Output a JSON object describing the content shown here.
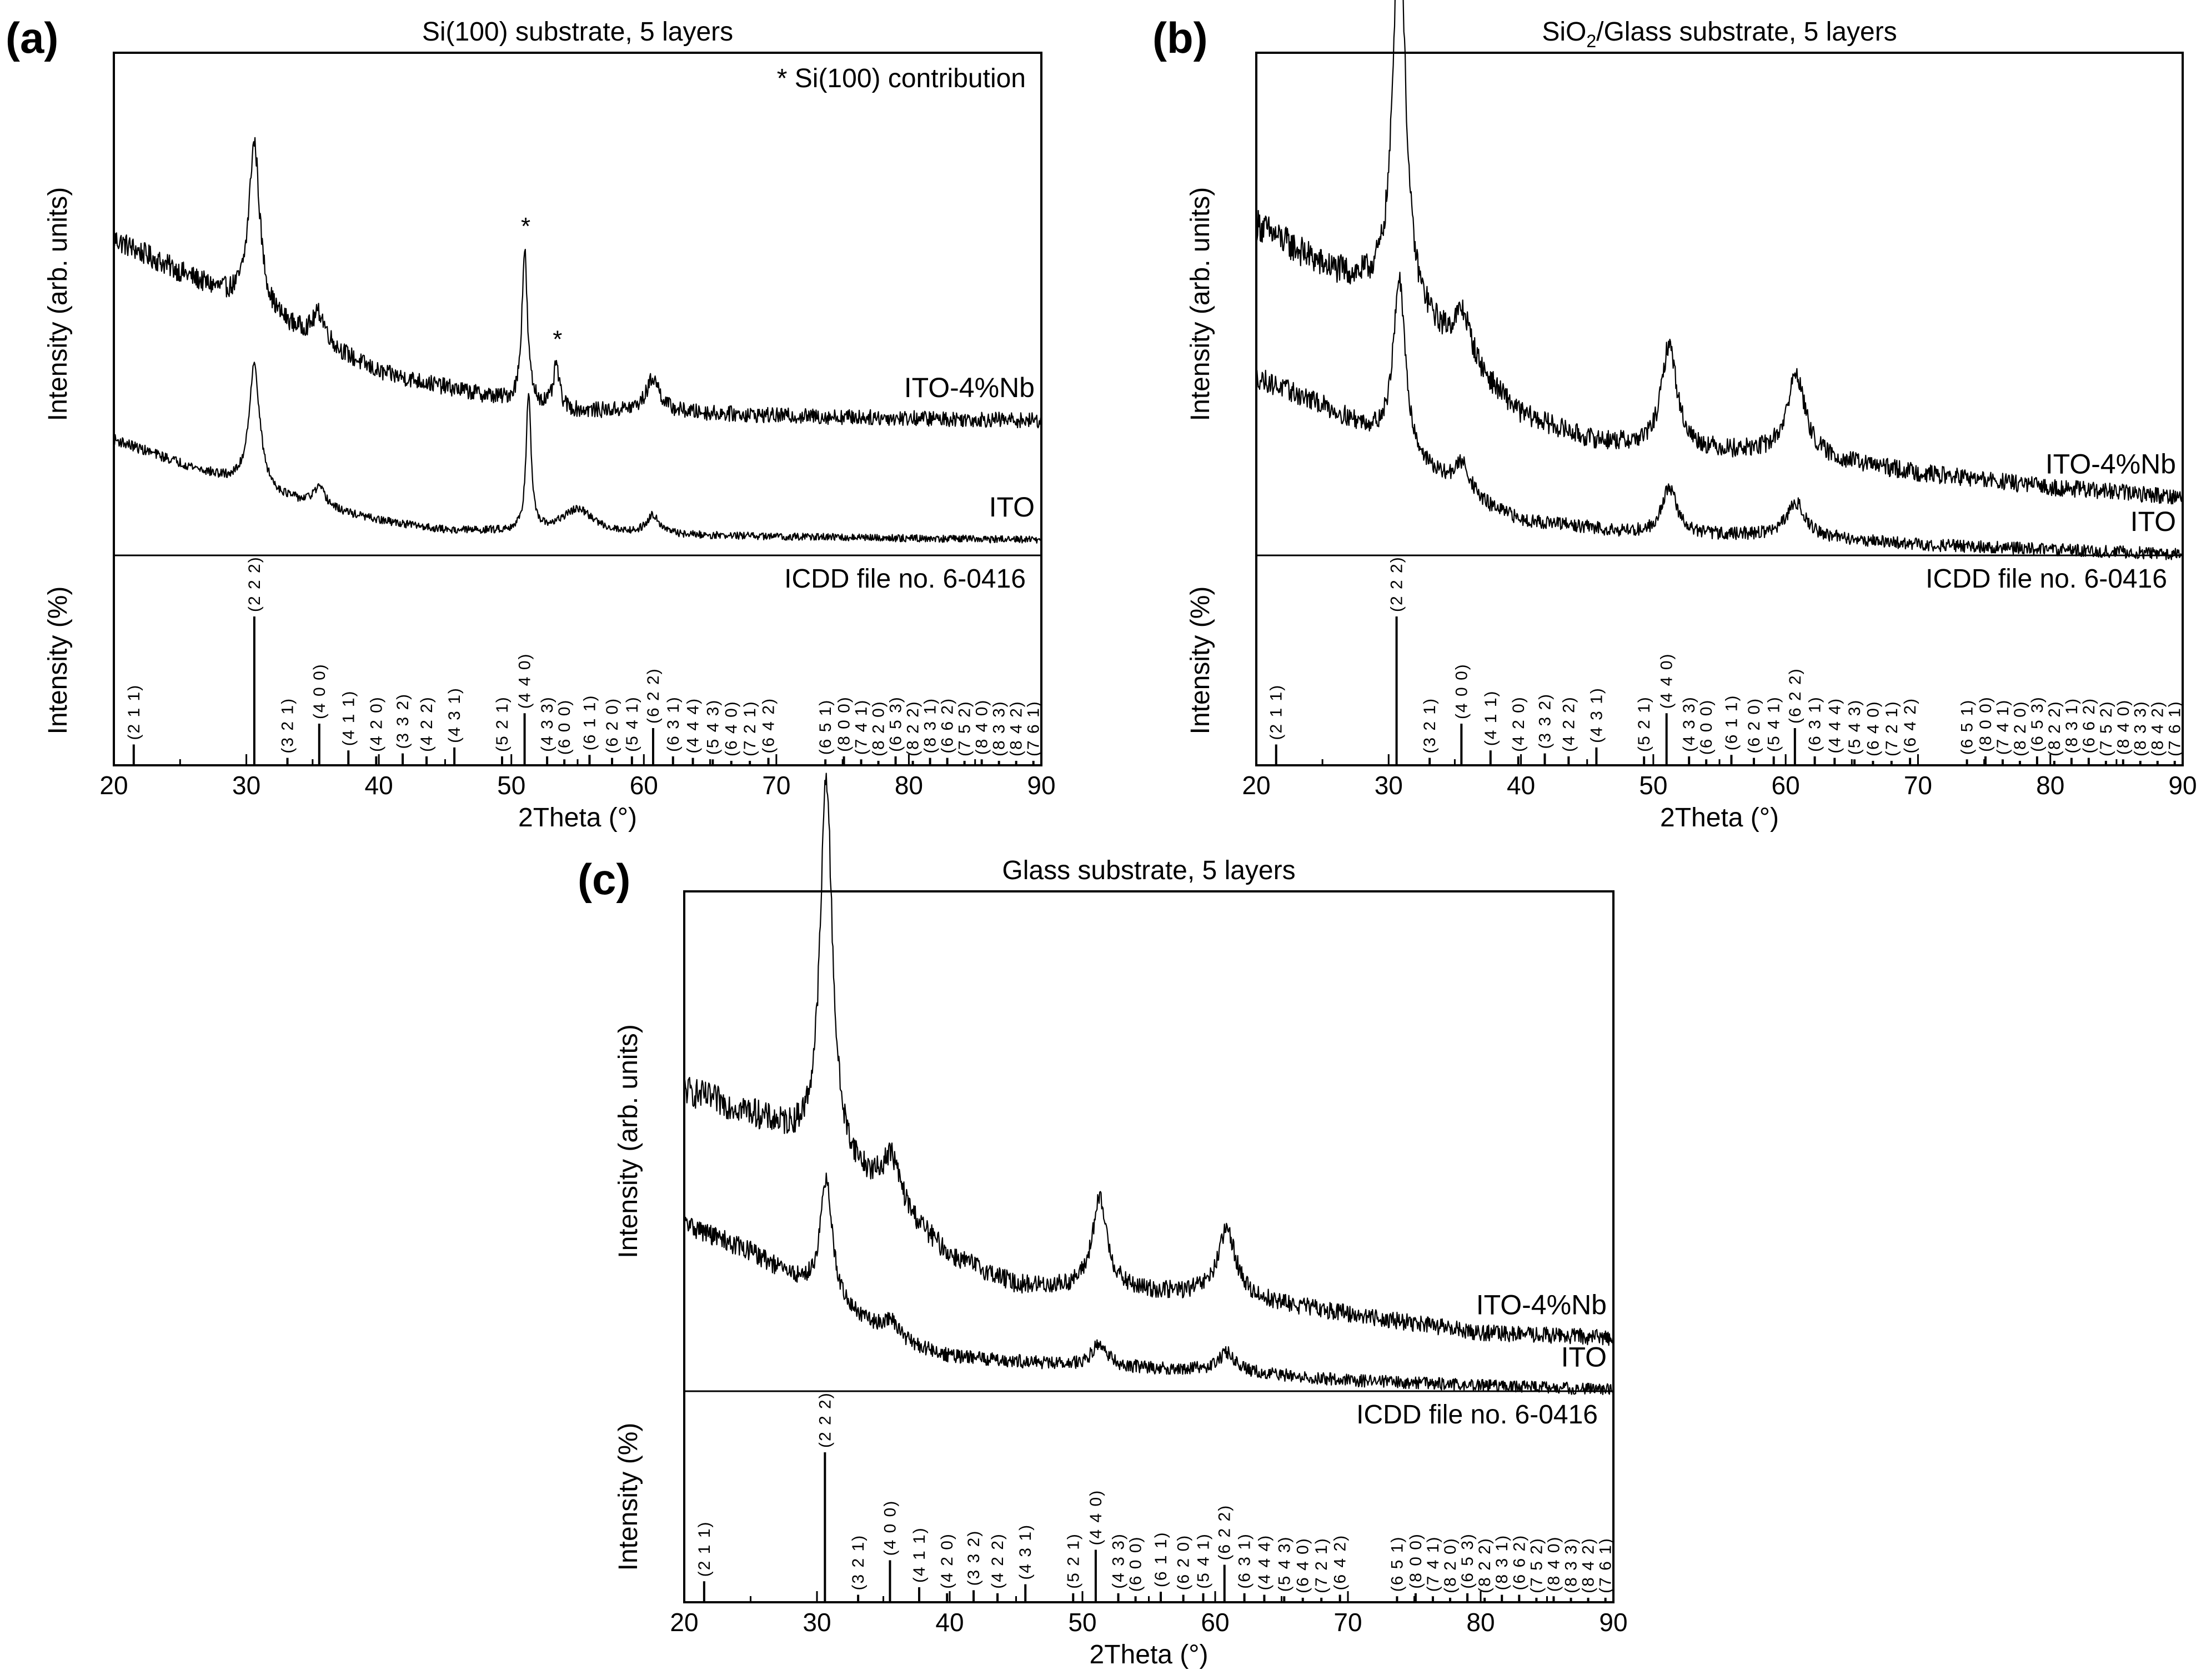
{
  "chart_data": [
    {
      "panel": "(a)",
      "type": "line",
      "title": "Si(100) substrate, 5 layers",
      "note": "* Si(100) contribution",
      "xlabel": "2Theta (°)",
      "ylabel": "Intensity (arb. units)",
      "xlim": [
        20,
        90
      ],
      "xticks": [
        20,
        30,
        40,
        50,
        60,
        70,
        80,
        90
      ],
      "grid": false,
      "series": [
        {
          "name": "ITO-4%Nb",
          "baseline": [
            [
              20,
              0.61
            ],
            [
              25,
              0.54
            ],
            [
              30,
              0.47
            ],
            [
              35,
              0.4
            ],
            [
              40,
              0.33
            ],
            [
              45,
              0.3
            ],
            [
              50,
              0.27
            ],
            [
              55,
              0.25
            ],
            [
              60,
              0.25
            ],
            [
              70,
              0.24
            ],
            [
              90,
              0.23
            ]
          ],
          "peaks": [
            {
              "x": 30.6,
              "h": 0.35,
              "w": 0.5
            },
            {
              "x": 35.5,
              "h": 0.06,
              "w": 0.6
            },
            {
              "x": 51.0,
              "h": 0.32,
              "w": 0.25
            },
            {
              "x": 53.4,
              "h": 0.09,
              "w": 0.25
            },
            {
              "x": 60.7,
              "h": 0.07,
              "w": 0.6
            }
          ],
          "noise": 0.022
        },
        {
          "name": "ITO",
          "baseline": [
            [
              20,
              0.19
            ],
            [
              25,
              0.14
            ],
            [
              30,
              0.09
            ],
            [
              35,
              0.05
            ],
            [
              40,
              0.02
            ],
            [
              45,
              0.0
            ],
            [
              60,
              -0.01
            ],
            [
              90,
              -0.02
            ]
          ],
          "peaks": [
            {
              "x": 30.6,
              "h": 0.26,
              "w": 0.5
            },
            {
              "x": 35.5,
              "h": 0.04,
              "w": 0.6
            },
            {
              "x": 51.3,
              "h": 0.29,
              "w": 0.22
            },
            {
              "x": 55.0,
              "h": 0.05,
              "w": 1.5
            },
            {
              "x": 60.7,
              "h": 0.04,
              "w": 0.6
            }
          ],
          "noise": 0.016
        }
      ],
      "reference": {
        "label": "ICDD file no. 6-0416",
        "ylabel": "Intensity (%)",
        "lines": [
          {
            "hkl": "(2 1 1)",
            "x": 21.5,
            "i": 14
          },
          {
            "hkl": "(2 2 2)",
            "x": 30.6,
            "i": 100
          },
          {
            "hkl": "(3 2 1)",
            "x": 33.1,
            "i": 5
          },
          {
            "hkl": "(4 0 0)",
            "x": 35.5,
            "i": 28
          },
          {
            "hkl": "(4 1 1)",
            "x": 37.7,
            "i": 10
          },
          {
            "hkl": "(4 2 0)",
            "x": 39.8,
            "i": 6
          },
          {
            "hkl": "(3 3 2)",
            "x": 41.8,
            "i": 8
          },
          {
            "hkl": "(4 2 2)",
            "x": 43.6,
            "i": 6
          },
          {
            "hkl": "(4 3 1)",
            "x": 45.7,
            "i": 12
          },
          {
            "hkl": "(5 2 1)",
            "x": 49.3,
            "i": 6
          },
          {
            "hkl": "(4 4 0)",
            "x": 51.0,
            "i": 35
          },
          {
            "hkl": "(4 3 3)",
            "x": 52.7,
            "i": 6
          },
          {
            "hkl": "(6 0 0)",
            "x": 54.0,
            "i": 4
          },
          {
            "hkl": "(6 1 1)",
            "x": 55.9,
            "i": 7
          },
          {
            "hkl": "(6 2 0)",
            "x": 57.6,
            "i": 5
          },
          {
            "hkl": "(5 4 1)",
            "x": 59.1,
            "i": 6
          },
          {
            "hkl": "(6 2 2)",
            "x": 60.7,
            "i": 25
          },
          {
            "hkl": "(6 3 1)",
            "x": 62.2,
            "i": 6
          },
          {
            "hkl": "(4 4 4)",
            "x": 63.7,
            "i": 5
          },
          {
            "hkl": "(5 4 3)",
            "x": 65.2,
            "i": 4
          },
          {
            "hkl": "(6 4 0)",
            "x": 66.6,
            "i": 3
          },
          {
            "hkl": "(7 2 1)",
            "x": 68.0,
            "i": 3
          },
          {
            "hkl": "(6 4 2)",
            "x": 69.4,
            "i": 5
          },
          {
            "hkl": "(6 5 1)",
            "x": 73.7,
            "i": 4
          },
          {
            "hkl": "(8 0 0)",
            "x": 75.1,
            "i": 6
          },
          {
            "hkl": "(7 4 1)",
            "x": 76.4,
            "i": 4
          },
          {
            "hkl": "(8 2 0)",
            "x": 77.7,
            "i": 3
          },
          {
            "hkl": "(6 5 3)",
            "x": 79.0,
            "i": 6
          },
          {
            "hkl": "(8 2 2)",
            "x": 80.3,
            "i": 3
          },
          {
            "hkl": "(8 3 1)",
            "x": 81.6,
            "i": 5
          },
          {
            "hkl": "(6 6 2)",
            "x": 82.9,
            "i": 5
          },
          {
            "hkl": "(7 5 2)",
            "x": 84.2,
            "i": 3
          },
          {
            "hkl": "(8 4 0)",
            "x": 85.5,
            "i": 4
          },
          {
            "hkl": "(8 3 3)",
            "x": 86.8,
            "i": 3
          },
          {
            "hkl": "(8 4 2)",
            "x": 88.1,
            "i": 3
          },
          {
            "hkl": "(7 6 1)",
            "x": 89.4,
            "i": 3
          }
        ]
      }
    },
    {
      "panel": "(b)",
      "type": "line",
      "title_parts": [
        "SiO",
        "2",
        "/Glass substrate, 5 layers"
      ],
      "xlabel": "2Theta (°)",
      "ylabel": "Intensity (arb. units)",
      "xlim": [
        20,
        90
      ],
      "xticks": [
        20,
        30,
        40,
        50,
        60,
        70,
        80,
        90
      ],
      "grid": false,
      "series": [
        {
          "name": "ITO-4%Nb",
          "baseline": [
            [
              20,
              0.64
            ],
            [
              25,
              0.55
            ],
            [
              29,
              0.5
            ],
            [
              33,
              0.42
            ],
            [
              36,
              0.34
            ],
            [
              40,
              0.24
            ],
            [
              45,
              0.19
            ],
            [
              50,
              0.17
            ],
            [
              60,
              0.16
            ],
            [
              70,
              0.12
            ],
            [
              80,
              0.09
            ],
            [
              90,
              0.07
            ]
          ],
          "peaks": [
            {
              "x": 30.8,
              "h": 0.85,
              "w": 0.55
            },
            {
              "x": 35.6,
              "h": 0.1,
              "w": 0.8
            },
            {
              "x": 51.2,
              "h": 0.22,
              "w": 0.7
            },
            {
              "x": 60.8,
              "h": 0.17,
              "w": 0.8
            }
          ],
          "noise": 0.03
        },
        {
          "name": "ITO",
          "baseline": [
            [
              20,
              0.32
            ],
            [
              25,
              0.26
            ],
            [
              29,
              0.2
            ],
            [
              33,
              0.12
            ],
            [
              36,
              0.06
            ],
            [
              40,
              0.02
            ],
            [
              50,
              -0.01
            ],
            [
              60,
              -0.01
            ],
            [
              70,
              -0.03
            ],
            [
              90,
              -0.05
            ]
          ],
          "peaks": [
            {
              "x": 30.8,
              "h": 0.36,
              "w": 0.55
            },
            {
              "x": 35.6,
              "h": 0.07,
              "w": 0.8
            },
            {
              "x": 51.2,
              "h": 0.1,
              "w": 0.7
            },
            {
              "x": 60.8,
              "h": 0.07,
              "w": 0.8
            }
          ],
          "noise": 0.028
        }
      ],
      "reference": {
        "label": "ICDD file no. 6-0416",
        "ylabel": "Intensity (%)",
        "lines": [
          {
            "hkl": "(2 1 1)",
            "x": 21.5,
            "i": 14
          },
          {
            "hkl": "(2 2 2)",
            "x": 30.6,
            "i": 100
          },
          {
            "hkl": "(3 2 1)",
            "x": 33.1,
            "i": 5
          },
          {
            "hkl": "(4 0 0)",
            "x": 35.5,
            "i": 28
          },
          {
            "hkl": "(4 1 1)",
            "x": 37.7,
            "i": 10
          },
          {
            "hkl": "(4 2 0)",
            "x": 39.8,
            "i": 6
          },
          {
            "hkl": "(3 3 2)",
            "x": 41.8,
            "i": 8
          },
          {
            "hkl": "(4 2 2)",
            "x": 43.6,
            "i": 6
          },
          {
            "hkl": "(4 3 1)",
            "x": 45.7,
            "i": 12
          },
          {
            "hkl": "(5 2 1)",
            "x": 49.3,
            "i": 6
          },
          {
            "hkl": "(4 4 0)",
            "x": 51.0,
            "i": 35
          },
          {
            "hkl": "(4 3 3)",
            "x": 52.7,
            "i": 6
          },
          {
            "hkl": "(6 0 0)",
            "x": 54.0,
            "i": 4
          },
          {
            "hkl": "(6 1 1)",
            "x": 55.9,
            "i": 7
          },
          {
            "hkl": "(6 2 0)",
            "x": 57.6,
            "i": 5
          },
          {
            "hkl": "(5 4 1)",
            "x": 59.1,
            "i": 6
          },
          {
            "hkl": "(6 2 2)",
            "x": 60.7,
            "i": 25
          },
          {
            "hkl": "(6 3 1)",
            "x": 62.2,
            "i": 6
          },
          {
            "hkl": "(4 4 4)",
            "x": 63.7,
            "i": 5
          },
          {
            "hkl": "(5 4 3)",
            "x": 65.2,
            "i": 4
          },
          {
            "hkl": "(6 4 0)",
            "x": 66.6,
            "i": 3
          },
          {
            "hkl": "(7 2 1)",
            "x": 68.0,
            "i": 3
          },
          {
            "hkl": "(6 4 2)",
            "x": 69.4,
            "i": 5
          },
          {
            "hkl": "(6 5 1)",
            "x": 73.7,
            "i": 4
          },
          {
            "hkl": "(8 0 0)",
            "x": 75.1,
            "i": 6
          },
          {
            "hkl": "(7 4 1)",
            "x": 76.4,
            "i": 4
          },
          {
            "hkl": "(8 2 0)",
            "x": 77.7,
            "i": 3
          },
          {
            "hkl": "(6 5 3)",
            "x": 79.0,
            "i": 6
          },
          {
            "hkl": "(8 2 2)",
            "x": 80.3,
            "i": 3
          },
          {
            "hkl": "(8 3 1)",
            "x": 81.6,
            "i": 5
          },
          {
            "hkl": "(6 6 2)",
            "x": 82.9,
            "i": 5
          },
          {
            "hkl": "(7 5 2)",
            "x": 84.2,
            "i": 3
          },
          {
            "hkl": "(8 4 0)",
            "x": 85.5,
            "i": 4
          },
          {
            "hkl": "(8 3 3)",
            "x": 86.8,
            "i": 3
          },
          {
            "hkl": "(8 4 2)",
            "x": 88.1,
            "i": 3
          },
          {
            "hkl": "(7 6 1)",
            "x": 89.4,
            "i": 3
          }
        ]
      }
    },
    {
      "panel": "(c)",
      "type": "line",
      "title": "Glass substrate, 5 layers",
      "xlabel": "2Theta (°)",
      "ylabel": "Intensity (arb. units)",
      "xlim": [
        20,
        90
      ],
      "xticks": [
        20,
        30,
        40,
        50,
        60,
        70,
        80,
        90
      ],
      "grid": false,
      "series": [
        {
          "name": "ITO-4%Nb",
          "baseline": [
            [
              20,
              0.58
            ],
            [
              25,
              0.53
            ],
            [
              29,
              0.47
            ],
            [
              33,
              0.4
            ],
            [
              36,
              0.33
            ],
            [
              40,
              0.23
            ],
            [
              45,
              0.17
            ],
            [
              50,
              0.16
            ],
            [
              60,
              0.15
            ],
            [
              70,
              0.11
            ],
            [
              80,
              0.07
            ],
            [
              90,
              0.06
            ]
          ],
          "peaks": [
            {
              "x": 30.7,
              "h": 0.8,
              "w": 0.55
            },
            {
              "x": 35.6,
              "h": 0.1,
              "w": 0.8
            },
            {
              "x": 51.3,
              "h": 0.19,
              "w": 0.7
            },
            {
              "x": 60.9,
              "h": 0.14,
              "w": 0.8
            }
          ],
          "noise": 0.03
        },
        {
          "name": "ITO",
          "baseline": [
            [
              20,
              0.3
            ],
            [
              25,
              0.24
            ],
            [
              29,
              0.17
            ],
            [
              33,
              0.1
            ],
            [
              36,
              0.05
            ],
            [
              40,
              0.02
            ],
            [
              50,
              0.0
            ],
            [
              60,
              -0.01
            ],
            [
              70,
              -0.03
            ],
            [
              90,
              -0.05
            ]
          ],
          "peaks": [
            {
              "x": 30.7,
              "h": 0.25,
              "w": 0.55
            },
            {
              "x": 35.6,
              "h": 0.04,
              "w": 0.8
            },
            {
              "x": 51.3,
              "h": 0.05,
              "w": 0.7
            },
            {
              "x": 60.9,
              "h": 0.04,
              "w": 0.8
            }
          ],
          "noise": 0.028
        }
      ],
      "reference": {
        "label": "ICDD file no. 6-0416",
        "ylabel": "Intensity (%)",
        "lines": [
          {
            "hkl": "(2 1 1)",
            "x": 21.5,
            "i": 14
          },
          {
            "hkl": "(2 2 2)",
            "x": 30.6,
            "i": 100
          },
          {
            "hkl": "(3 2 1)",
            "x": 33.1,
            "i": 5
          },
          {
            "hkl": "(4 0 0)",
            "x": 35.5,
            "i": 28
          },
          {
            "hkl": "(4 1 1)",
            "x": 37.7,
            "i": 10
          },
          {
            "hkl": "(4 2 0)",
            "x": 39.8,
            "i": 6
          },
          {
            "hkl": "(3 3 2)",
            "x": 41.8,
            "i": 8
          },
          {
            "hkl": "(4 2 2)",
            "x": 43.6,
            "i": 6
          },
          {
            "hkl": "(4 3 1)",
            "x": 45.7,
            "i": 12
          },
          {
            "hkl": "(5 2 1)",
            "x": 49.3,
            "i": 6
          },
          {
            "hkl": "(4 4 0)",
            "x": 51.0,
            "i": 35
          },
          {
            "hkl": "(4 3 3)",
            "x": 52.7,
            "i": 6
          },
          {
            "hkl": "(6 0 0)",
            "x": 54.0,
            "i": 4
          },
          {
            "hkl": "(6 1 1)",
            "x": 55.9,
            "i": 7
          },
          {
            "hkl": "(6 2 0)",
            "x": 57.6,
            "i": 5
          },
          {
            "hkl": "(5 4 1)",
            "x": 59.1,
            "i": 6
          },
          {
            "hkl": "(6 2 2)",
            "x": 60.7,
            "i": 25
          },
          {
            "hkl": "(6 3 1)",
            "x": 62.2,
            "i": 6
          },
          {
            "hkl": "(4 4 4)",
            "x": 63.7,
            "i": 5
          },
          {
            "hkl": "(5 4 3)",
            "x": 65.2,
            "i": 4
          },
          {
            "hkl": "(6 4 0)",
            "x": 66.6,
            "i": 3
          },
          {
            "hkl": "(7 2 1)",
            "x": 68.0,
            "i": 3
          },
          {
            "hkl": "(6 4 2)",
            "x": 69.4,
            "i": 5
          },
          {
            "hkl": "(6 5 1)",
            "x": 73.7,
            "i": 4
          },
          {
            "hkl": "(8 0 0)",
            "x": 75.1,
            "i": 6
          },
          {
            "hkl": "(7 4 1)",
            "x": 76.4,
            "i": 4
          },
          {
            "hkl": "(8 2 0)",
            "x": 77.7,
            "i": 3
          },
          {
            "hkl": "(6 5 3)",
            "x": 79.0,
            "i": 6
          },
          {
            "hkl": "(8 2 2)",
            "x": 80.3,
            "i": 3
          },
          {
            "hkl": "(8 3 1)",
            "x": 81.6,
            "i": 5
          },
          {
            "hkl": "(6 6 2)",
            "x": 82.9,
            "i": 5
          },
          {
            "hkl": "(7 5 2)",
            "x": 84.2,
            "i": 3
          },
          {
            "hkl": "(8 4 0)",
            "x": 85.5,
            "i": 4
          },
          {
            "hkl": "(8 3 3)",
            "x": 86.8,
            "i": 3
          },
          {
            "hkl": "(8 4 2)",
            "x": 88.1,
            "i": 3
          },
          {
            "hkl": "(7 6 1)",
            "x": 89.4,
            "i": 3
          }
        ]
      }
    }
  ]
}
